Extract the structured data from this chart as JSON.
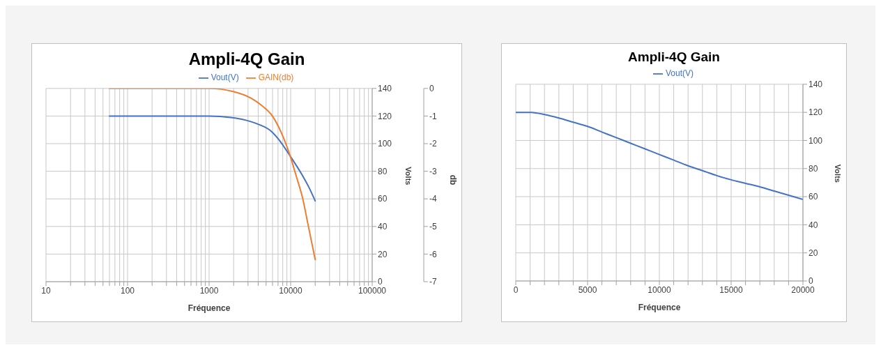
{
  "chart_data": [
    {
      "type": "line",
      "title": "Ampli-4Q Gain",
      "xlabel": "Fréquence",
      "ylabel": "Volts",
      "y2label": "db",
      "log": "x",
      "grid": true,
      "legend": "top",
      "marker": "none",
      "xlim": [
        10,
        100000
      ],
      "xticks": [
        10,
        {
          "value": 20,
          "label": null
        },
        {
          "value": 30,
          "label": null
        },
        {
          "value": 40,
          "label": null
        },
        {
          "value": 50,
          "label": null
        },
        {
          "value": 60,
          "label": null
        },
        {
          "value": 70,
          "label": null
        },
        {
          "value": 80,
          "label": null
        },
        {
          "value": 90,
          "label": null
        },
        100,
        {
          "value": 200,
          "label": null
        },
        {
          "value": 300,
          "label": null
        },
        {
          "value": 400,
          "label": null
        },
        {
          "value": 500,
          "label": null
        },
        {
          "value": 600,
          "label": null
        },
        {
          "value": 700,
          "label": null
        },
        {
          "value": 800,
          "label": null
        },
        {
          "value": 900,
          "label": null
        },
        1000,
        {
          "value": 2000,
          "label": null
        },
        {
          "value": 3000,
          "label": null
        },
        {
          "value": 4000,
          "label": null
        },
        {
          "value": 5000,
          "label": null
        },
        {
          "value": 6000,
          "label": null
        },
        {
          "value": 7000,
          "label": null
        },
        {
          "value": 8000,
          "label": null
        },
        {
          "value": 9000,
          "label": null
        },
        10000,
        {
          "value": 20000,
          "label": null
        },
        {
          "value": 30000,
          "label": null
        },
        {
          "value": 40000,
          "label": null
        },
        {
          "value": 50000,
          "label": null
        },
        {
          "value": 60000,
          "label": null
        },
        {
          "value": 70000,
          "label": null
        },
        {
          "value": 80000,
          "label": null
        },
        {
          "value": 90000,
          "label": null
        },
        100000
      ],
      "ylim": [
        0,
        140
      ],
      "yticks": [
        0,
        20,
        40,
        60,
        80,
        100,
        120,
        140
      ],
      "y2lim": [
        -7,
        0
      ],
      "y2ticks": [
        -7,
        -6,
        -5,
        -4,
        -3,
        -2,
        -1,
        0
      ],
      "series": [
        {
          "name": "Vout(V)",
          "color": "#4472c4",
          "x": [
            60,
            1000,
            1840,
            2820,
            4030,
            5770,
            7150,
            10000,
            13610,
            16870,
            20000
          ],
          "values": [
            120,
            120,
            119,
            117,
            114,
            109,
            103,
            90.5,
            78,
            68,
            58.5
          ]
        },
        {
          "name": "GAIN(db)",
          "color": "#ed7d31",
          "axis": "y2",
          "x": [
            60,
            1000,
            1970,
            3250,
            4330,
            5970,
            7670,
            10000,
            11780,
            14090,
            16260,
            20000
          ],
          "values": [
            0,
            0,
            -0.11,
            -0.35,
            -0.6,
            -1.0,
            -1.6,
            -2.5,
            -3.2,
            -4.0,
            -4.9,
            -6.2
          ]
        }
      ]
    },
    {
      "type": "line",
      "title": "Ampli-4Q Gain",
      "xlabel": "Fréquence",
      "ylabel": "Volts",
      "grid": true,
      "legend": "top",
      "marker": "none",
      "xlim": [
        0,
        20000
      ],
      "xticks": [
        0,
        {
          "value": 1000,
          "label": null
        },
        {
          "value": 2000,
          "label": null
        },
        {
          "value": 3000,
          "label": null
        },
        {
          "value": 4000,
          "label": null
        },
        5000,
        {
          "value": 6000,
          "label": null
        },
        {
          "value": 7000,
          "label": null
        },
        {
          "value": 8000,
          "label": null
        },
        {
          "value": 9000,
          "label": null
        },
        10000,
        {
          "value": 11000,
          "label": null
        },
        {
          "value": 12000,
          "label": null
        },
        {
          "value": 13000,
          "label": null
        },
        {
          "value": 14000,
          "label": null
        },
        15000,
        {
          "value": 16000,
          "label": null
        },
        {
          "value": 17000,
          "label": null
        },
        {
          "value": 18000,
          "label": null
        },
        {
          "value": 19000,
          "label": null
        },
        20000
      ],
      "ylim": [
        0,
        140
      ],
      "yticks": [
        0,
        20,
        40,
        60,
        80,
        100,
        120,
        140
      ],
      "series": [
        {
          "name": "Vout(V)",
          "color": "#4472c4",
          "x": [
            0,
            1000,
            2000,
            3000,
            4000,
            5000,
            6000,
            7000,
            8000,
            9000,
            10000,
            11000,
            12000,
            13000,
            14000,
            15000,
            16000,
            17000,
            18000,
            19000,
            20000
          ],
          "values": [
            120,
            120,
            118.5,
            116,
            113,
            110,
            106,
            102,
            98,
            94,
            90,
            86,
            82,
            78.5,
            75,
            72,
            69.5,
            67,
            64,
            61,
            58
          ]
        }
      ]
    }
  ]
}
